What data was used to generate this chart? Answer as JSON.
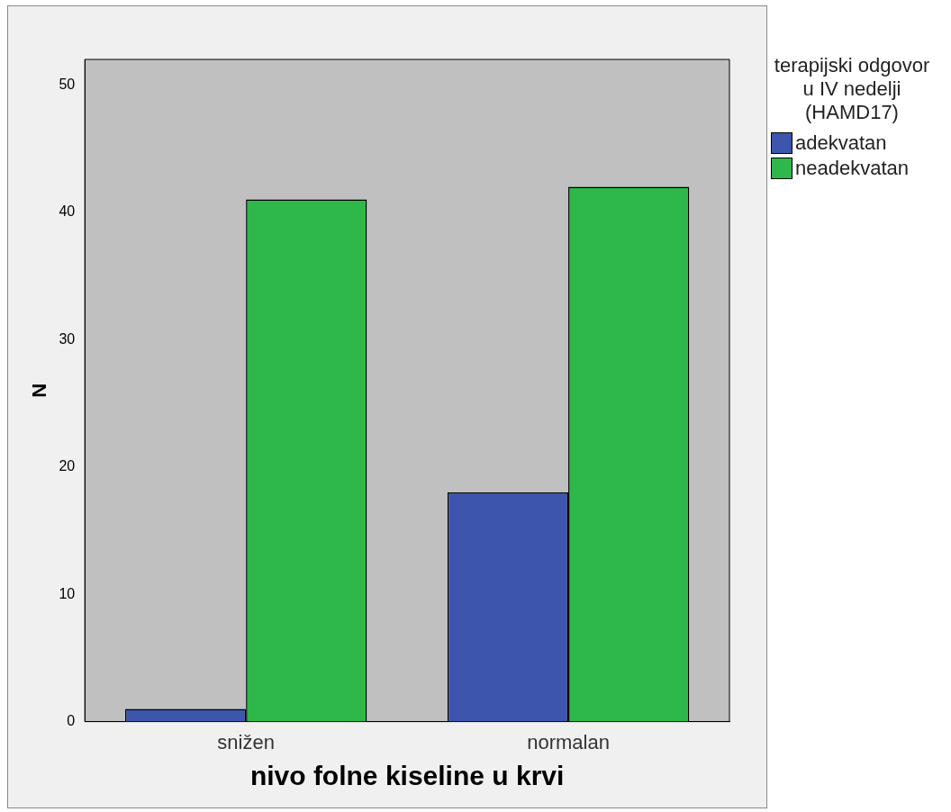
{
  "chart_data": {
    "type": "bar",
    "xlabel": "nivo folne kiseline u krvi",
    "ylabel": "N",
    "legend_title": "terapijski odgovor u IV nedelji (HAMD17)",
    "categories": [
      "snižen",
      "normalan"
    ],
    "series": [
      {
        "name": "adekvatan",
        "color": "#3d55ad",
        "values": [
          1,
          18
        ]
      },
      {
        "name": "neadekvatan",
        "color": "#2eb84a",
        "values": [
          41,
          42
        ]
      }
    ],
    "ylim": [
      0,
      52
    ],
    "yticks": [
      0,
      10,
      20,
      30,
      40,
      50
    ],
    "grid": false,
    "legend": "right"
  }
}
